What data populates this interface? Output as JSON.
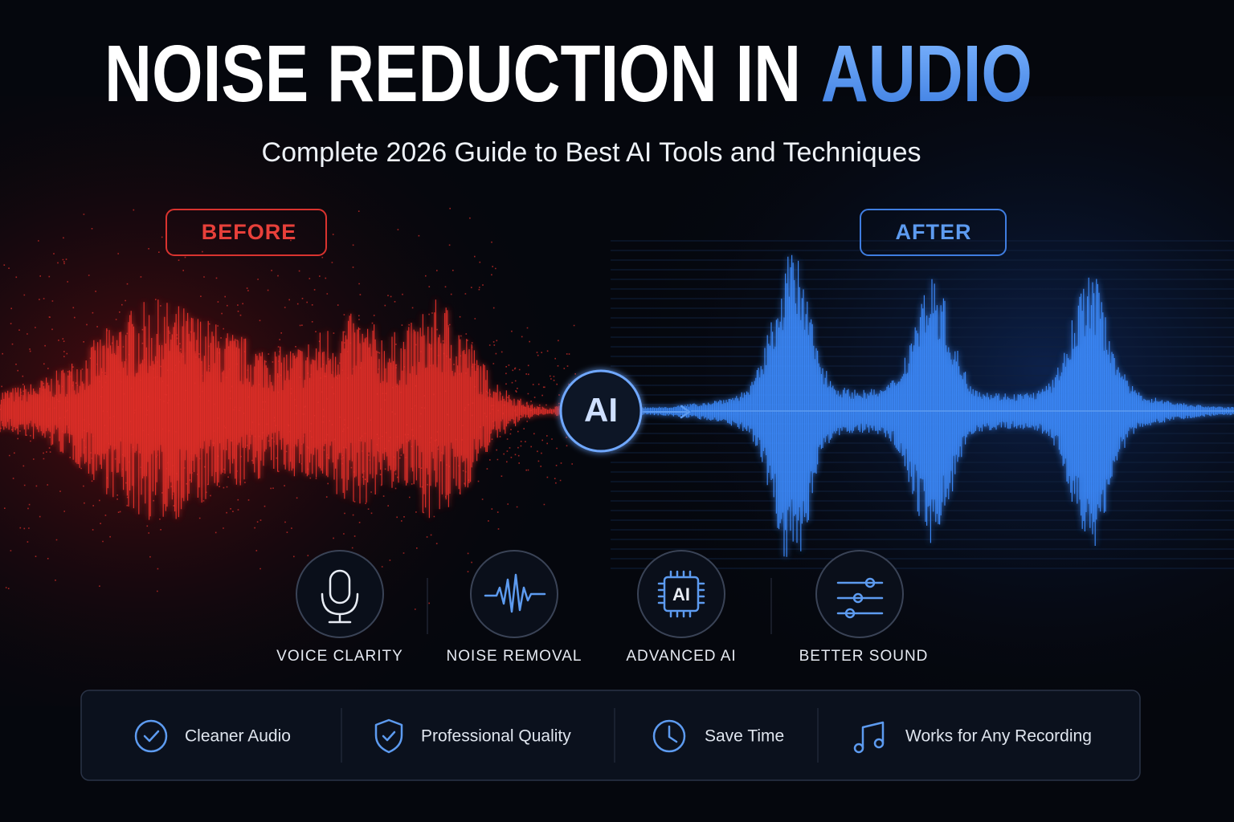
{
  "title": {
    "main": "NOISE REDUCTION IN",
    "highlight": "AUDIO"
  },
  "subtitle": "Complete 2026 Guide to Best AI Tools and Techniques",
  "before_label": "BEFORE",
  "after_label": "AFTER",
  "center_badge": "AI",
  "features": [
    {
      "label": "VOICE CLARITY"
    },
    {
      "label": "NOISE REMOVAL"
    },
    {
      "label": "ADVANCED AI",
      "chip_label": "AI"
    },
    {
      "label": "BETTER SOUND"
    }
  ],
  "benefits": [
    "Cleaner Audio",
    "Professional Quality",
    "Save Time",
    "Works for Any Recording"
  ]
}
